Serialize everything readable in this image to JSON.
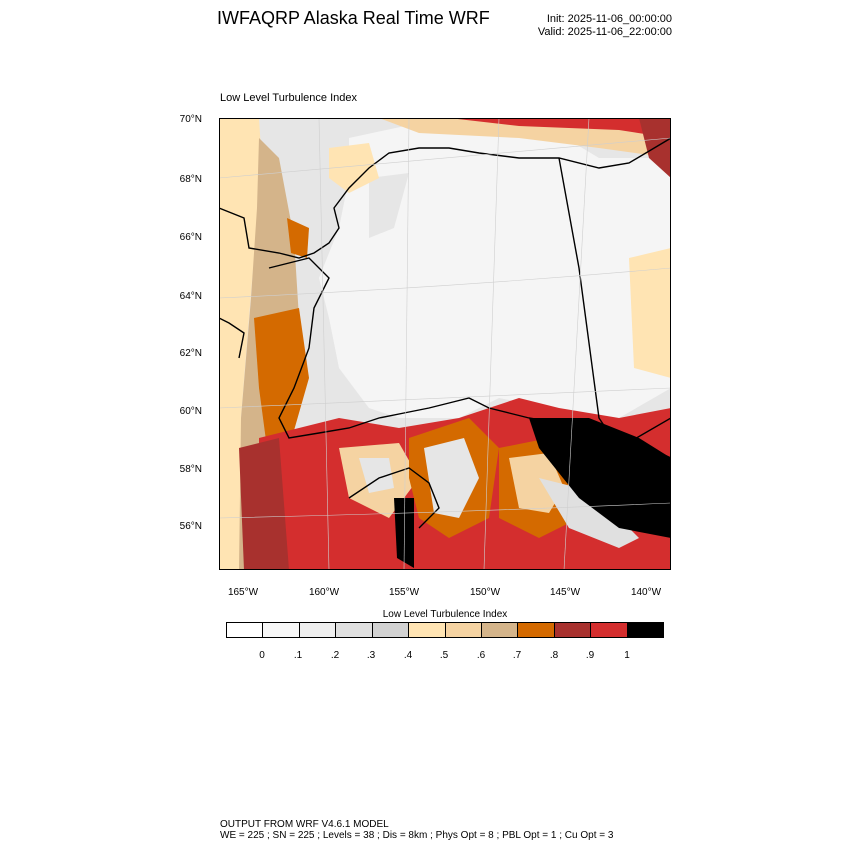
{
  "header": {
    "title": "IWFAQRP Alaska Real Time WRF",
    "init": "Init: 2025-11-06_00:00:00",
    "valid": "Valid: 2025-11-06_22:00:00"
  },
  "map": {
    "field_title": "Low Level Turbulence Index",
    "lat_labels": [
      "70°N",
      "68°N",
      "66°N",
      "64°N",
      "62°N",
      "60°N",
      "58°N",
      "56°N"
    ],
    "lon_labels": [
      "165°W",
      "160°W",
      "155°W",
      "150°W",
      "145°W",
      "140°W"
    ],
    "land_color": "#f5f5f5",
    "coastline_color": "#000000"
  },
  "colorbar": {
    "title": "Low Level Turbulence Index",
    "labels": [
      "0",
      ".1",
      ".2",
      ".3",
      ".4",
      ".5",
      ".6",
      ".7",
      ".8",
      ".9",
      "1"
    ],
    "colors": [
      "#ffffff",
      "#f7f7f7",
      "#efefef",
      "#e0e0e0",
      "#d2d2d2",
      "#ffe4b3",
      "#f5d3a2",
      "#d4b48a",
      "#d46a00",
      "#a8312e",
      "#d42e2e",
      "#000000"
    ]
  },
  "footer": {
    "line1": "OUTPUT FROM WRF V4.6.1 MODEL",
    "line2": "WE = 225 ; SN = 225 ; Levels = 38 ; Dis = 8km ; Phys Opt = 8 ; PBL Opt = 1 ; Cu Opt = 3"
  }
}
